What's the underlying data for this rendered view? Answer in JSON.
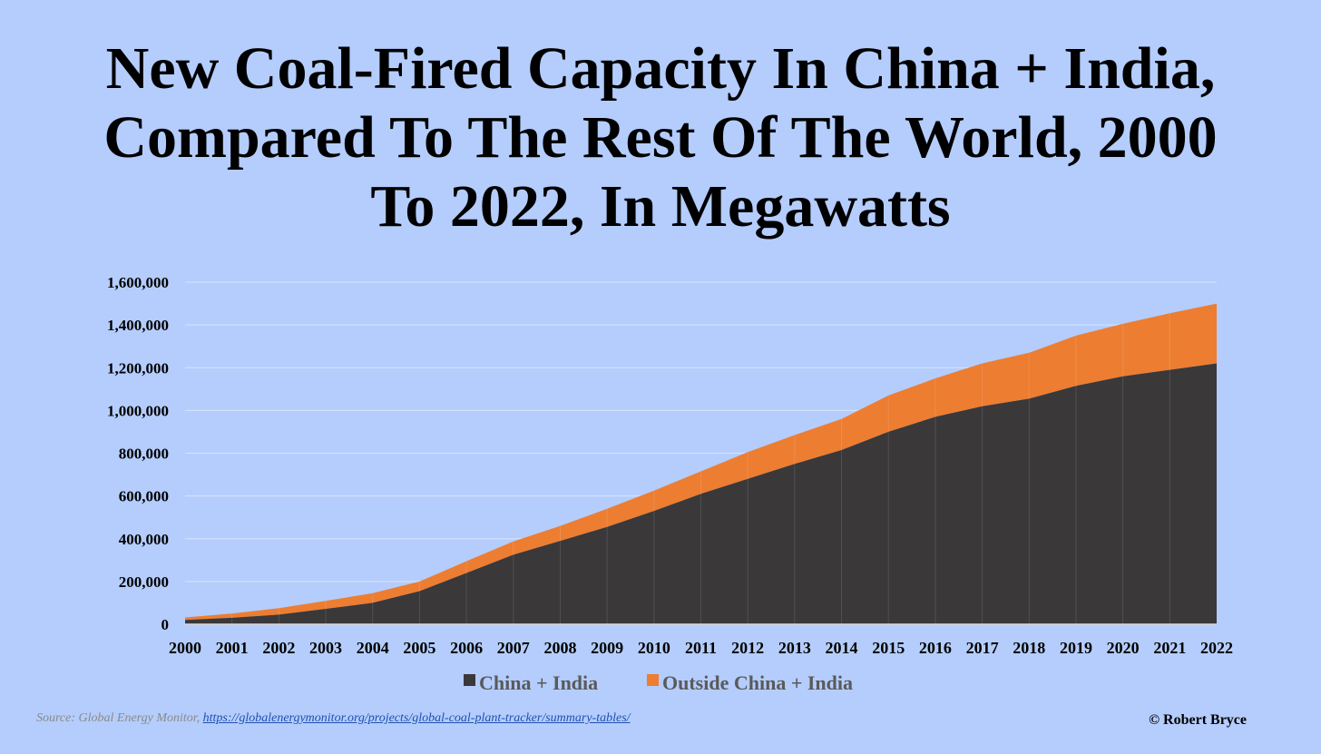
{
  "chart_data": {
    "type": "area",
    "stacked": true,
    "title_lines": [
      "New Coal-Fired Capacity In China + India,",
      "Compared To The Rest Of The World, 2000",
      "To 2022, In Megawatts"
    ],
    "xlabel": "",
    "ylabel": "",
    "x": [
      "2000",
      "2001",
      "2002",
      "2003",
      "2004",
      "2005",
      "2006",
      "2007",
      "2008",
      "2009",
      "2010",
      "2011",
      "2012",
      "2013",
      "2014",
      "2015",
      "2016",
      "2017",
      "2018",
      "2019",
      "2020",
      "2021",
      "2022"
    ],
    "series": [
      {
        "name": "China + India",
        "color": "#3a3839",
        "values": [
          20000,
          30000,
          45000,
          72000,
          100000,
          155000,
          240000,
          325000,
          390000,
          455000,
          530000,
          610000,
          680000,
          750000,
          815000,
          900000,
          970000,
          1020000,
          1055000,
          1115000,
          1160000,
          1190000,
          1220000
        ]
      },
      {
        "name": "Outside China + India",
        "color": "#ed7d31",
        "values": [
          12000,
          20000,
          30000,
          37000,
          45000,
          45000,
          55000,
          62000,
          70000,
          85000,
          95000,
          105000,
          125000,
          135000,
          145000,
          170000,
          180000,
          200000,
          215000,
          235000,
          245000,
          265000,
          280000
        ]
      }
    ],
    "ylim": [
      0,
      1600000
    ],
    "y_ticks": [
      {
        "value": 0,
        "label": "0"
      },
      {
        "value": 200000,
        "label": "200,000"
      },
      {
        "value": 400000,
        "label": "400,000"
      },
      {
        "value": 600000,
        "label": "600,000"
      },
      {
        "value": 800000,
        "label": "800,000"
      },
      {
        "value": 1000000,
        "label": "1,000,000"
      },
      {
        "value": 1200000,
        "label": "1,200,000"
      },
      {
        "value": 1400000,
        "label": "1,400,000"
      },
      {
        "value": 1600000,
        "label": "1,600,000"
      }
    ],
    "grid": true,
    "legend_position": "bottom-center"
  },
  "footer": {
    "source_prefix": "Source: Global Energy Monitor, ",
    "source_link": "https://globalenergymonitor.org/projects/global-coal-plant-tracker/summary-tables/",
    "credit": "© Robert Bryce"
  },
  "colors": {
    "background": "#b4cdfc",
    "gridline": "#d9e4fb",
    "axis_text": "#000000",
    "legend_text": "#5a5a5a"
  }
}
